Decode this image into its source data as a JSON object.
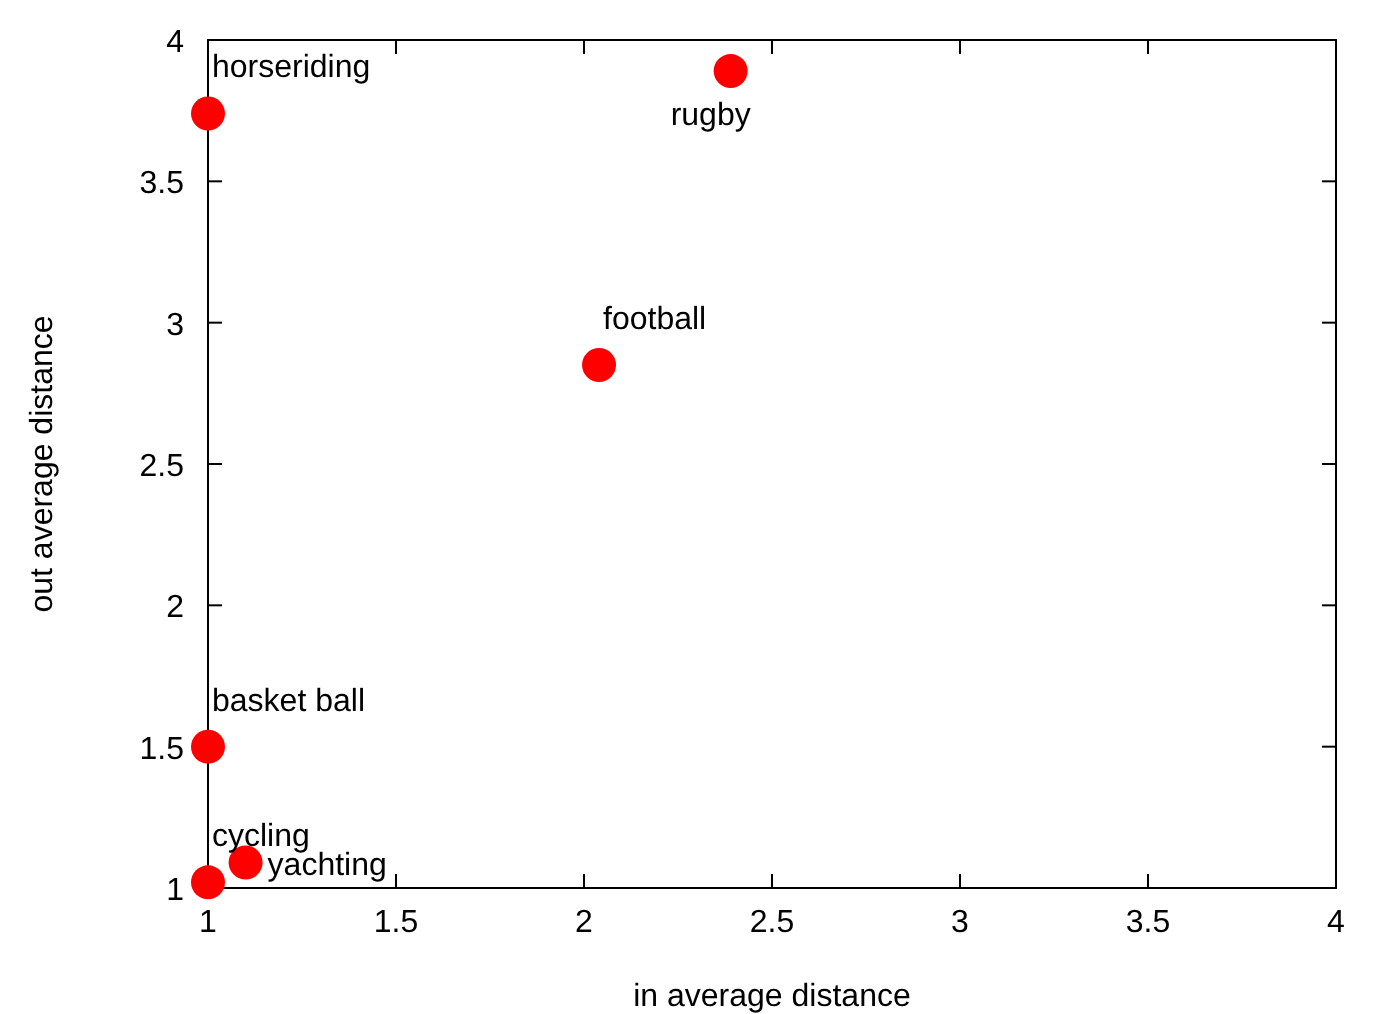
{
  "chart_data": {
    "type": "scatter",
    "xlabel": "in average distance",
    "ylabel": "out average distance",
    "x": [
      1.0,
      2.39,
      2.04,
      1.0,
      1.0,
      1.1
    ],
    "series": [
      {
        "color": "#ff0000",
        "values": [
          3.74,
          3.89,
          2.85,
          1.5,
          1.02,
          1.09
        ]
      }
    ],
    "xlim": [
      1,
      4
    ],
    "ylim": [
      1,
      4
    ],
    "xticks": [
      1,
      1.5,
      2,
      2.5,
      3,
      3.5,
      4
    ],
    "yticks": [
      1,
      1.5,
      2,
      2.5,
      3,
      3.5,
      4
    ],
    "grid": false,
    "marker": "circle",
    "annotations": [
      {
        "text": "horseriding",
        "x": 1.0,
        "y": 3.74
      },
      {
        "text": "rugby",
        "x": 2.39,
        "y": 3.89
      },
      {
        "text": "football",
        "x": 2.04,
        "y": 2.85
      },
      {
        "text": "basket ball",
        "x": 1.0,
        "y": 1.5
      },
      {
        "text": "cycling",
        "x": 1.0,
        "y": 1.02
      },
      {
        "text": "yachting",
        "x": 1.1,
        "y": 1.09
      }
    ]
  }
}
